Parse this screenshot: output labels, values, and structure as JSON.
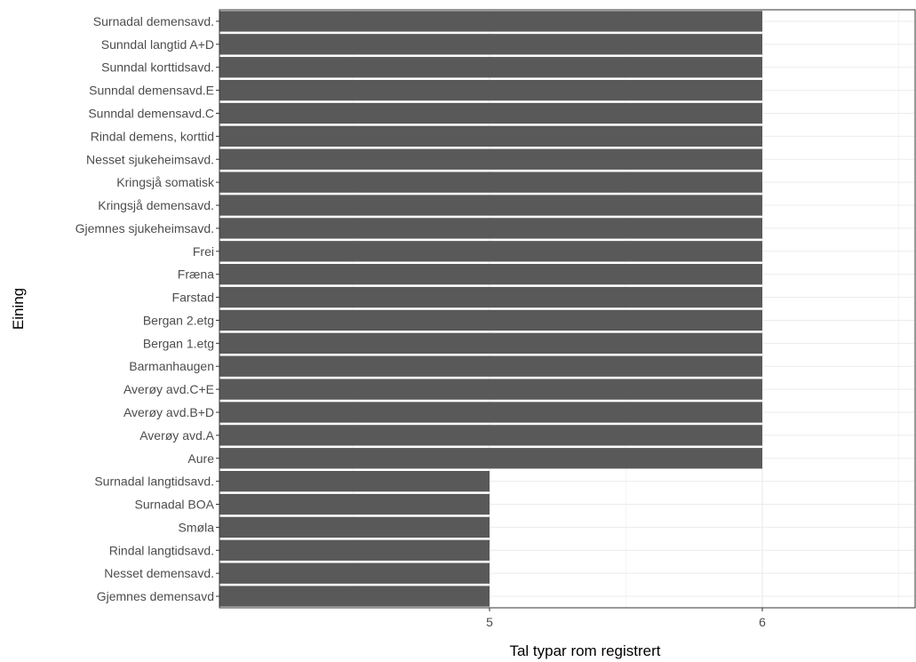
{
  "chart_data": {
    "type": "bar",
    "orientation": "horizontal",
    "xlabel": "Tal typar rom registrert",
    "ylabel": "Eining",
    "x_ticks": [
      5,
      6
    ],
    "grid": true,
    "legend": "none",
    "bar_color": "#595959",
    "categories": [
      "Surnadal demensavd.",
      "Sunndal langtid A+D",
      "Sunndal korttidsavd.",
      "Sunndal demensavd.E",
      "Sunndal demensavd.C",
      "Rindal demens, korttid",
      "Nesset sjukeheimsavd.",
      "Kringsjå somatisk",
      "Kringsjå demensavd.",
      "Gjemnes sjukeheimsavd.",
      "Frei",
      "Fræna",
      "Farstad",
      "Bergan 2.etg",
      "Bergan 1.etg",
      "Barmanhaugen",
      "Averøy avd.C+E",
      "Averøy avd.B+D",
      "Averøy avd.A",
      "Aure",
      "Surnadal langtidsavd.",
      "Surnadal BOA",
      "Smøla",
      "Rindal langtidsavd.",
      "Nesset demensavd.",
      "Gjemnes demensavd"
    ],
    "values": [
      6,
      6,
      6,
      6,
      6,
      6,
      6,
      6,
      6,
      6,
      6,
      6,
      6,
      6,
      6,
      6,
      6,
      6,
      6,
      6,
      5,
      5,
      5,
      5,
      5,
      5
    ]
  }
}
